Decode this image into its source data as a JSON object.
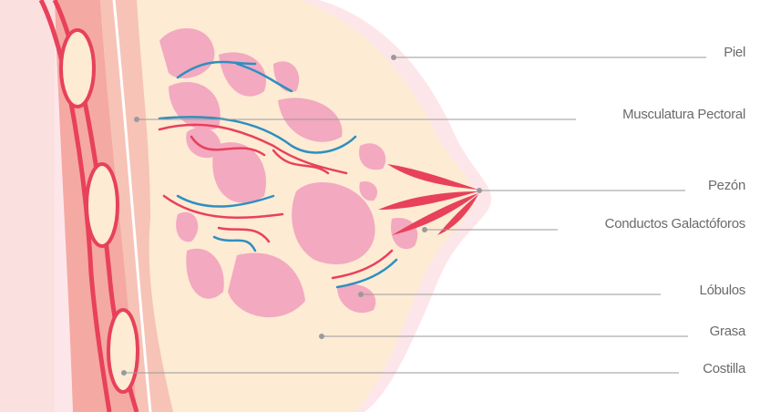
{
  "labels": [
    "Piel",
    "Musculatura Pectoral",
    "Pezón",
    "Conductos Galactóforos",
    "Lóbulos",
    "Grasa",
    "Costilla"
  ]
}
